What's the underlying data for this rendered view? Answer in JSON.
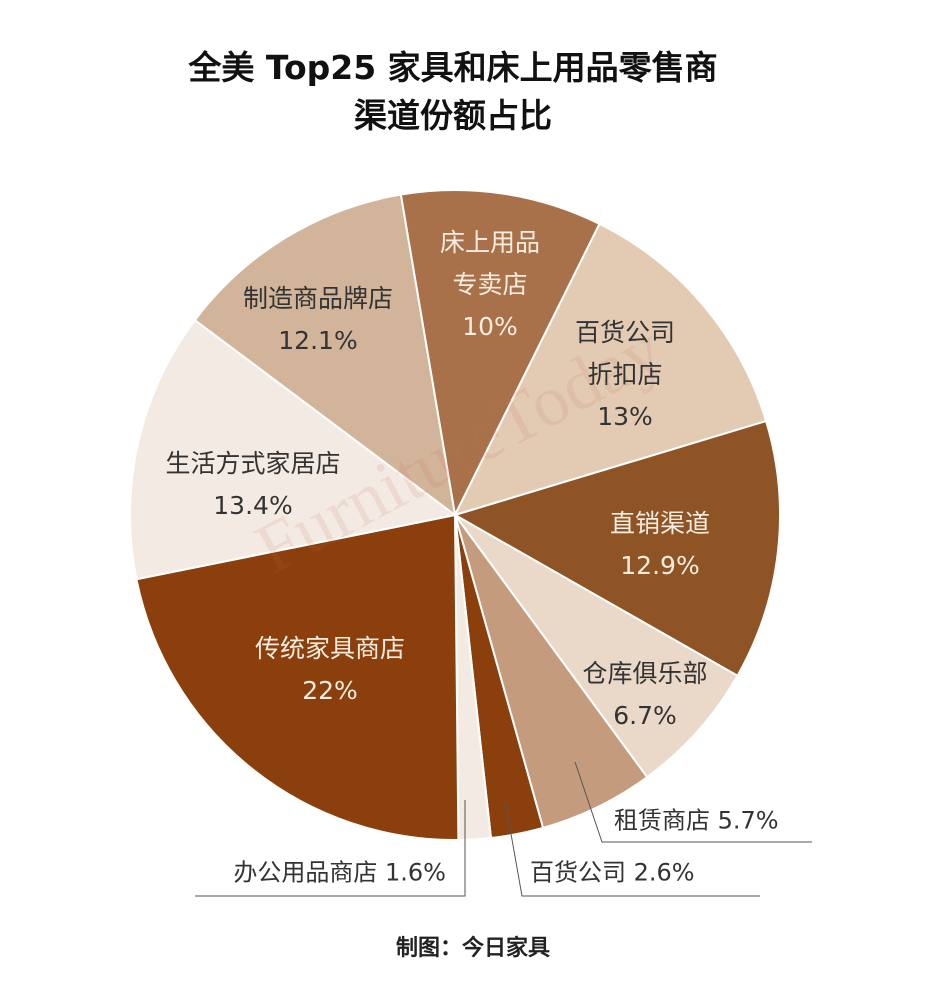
{
  "chart_data": {
    "type": "pie",
    "title": "全美 Top25 家具和床上用品零售商渠道份额占比",
    "categories": [
      "床上用品专卖店",
      "百货公司折扣店",
      "直销渠道",
      "仓库俱乐部",
      "租赁商店",
      "百货公司",
      "办公用品商店",
      "传统家具商店",
      "生活方式家居店",
      "制造商品牌店"
    ],
    "values": [
      10,
      13,
      12.9,
      6.7,
      5.7,
      2.6,
      1.6,
      22,
      13.4,
      12.1
    ],
    "value_labels": [
      "10%",
      "13%",
      "12.9%",
      "6.7%",
      "5.7%",
      "2.6%",
      "1.6%",
      "22%",
      "13.4%",
      "12.1%"
    ],
    "colors": [
      "#a8714a",
      "#e3cbb3",
      "#8f5426",
      "#ead9c8",
      "#c49b7d",
      "#8a3f0d",
      "#f3ebe3",
      "#8b3f0c",
      "#f3ebe3",
      "#d2b49a"
    ],
    "watermark": "FurnitureToday",
    "source": "制图：今日家具"
  }
}
